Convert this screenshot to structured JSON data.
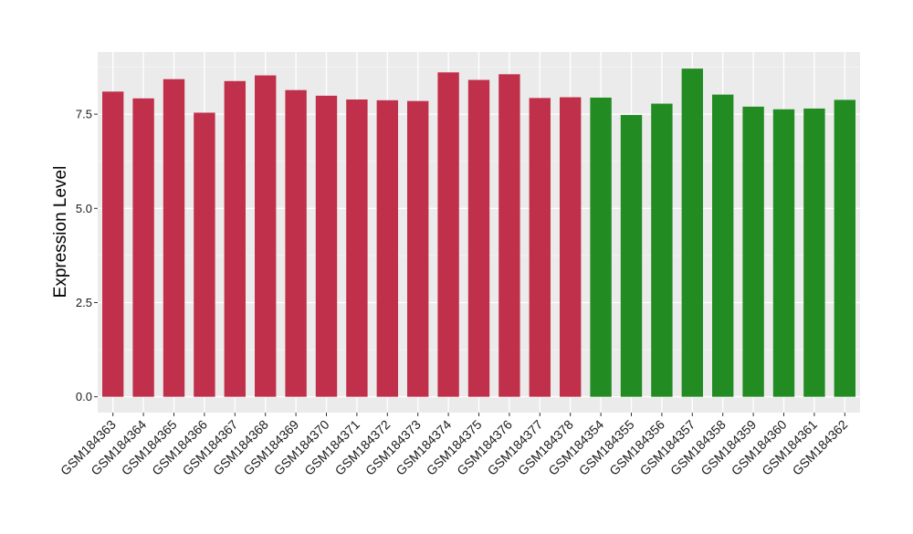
{
  "chart_data": {
    "type": "bar",
    "title": "",
    "xlabel": "",
    "ylabel": "Expression Level",
    "ylim": [
      -0.42,
      9.15
    ],
    "yticks": [
      0.0,
      2.5,
      5.0,
      7.5
    ],
    "ytick_labels": [
      "0.0",
      "2.5",
      "5.0",
      "7.5"
    ],
    "grid": true,
    "legend": "none",
    "colors": {
      "group1": "#c0304a",
      "group2": "#228b22",
      "panel_bg": "#ebebeb",
      "grid_major": "#ffffff",
      "grid_minor": "#f5f5f5"
    },
    "categories": [
      "GSM184363",
      "GSM184364",
      "GSM184365",
      "GSM184366",
      "GSM184367",
      "GSM184368",
      "GSM184369",
      "GSM184370",
      "GSM184371",
      "GSM184372",
      "GSM184373",
      "GSM184374",
      "GSM184375",
      "GSM184376",
      "GSM184377",
      "GSM184378",
      "GSM184354",
      "GSM184355",
      "GSM184356",
      "GSM184357",
      "GSM184358",
      "GSM184359",
      "GSM184360",
      "GSM184361",
      "GSM184362"
    ],
    "values": [
      8.1,
      7.92,
      8.43,
      7.54,
      8.38,
      8.53,
      8.14,
      7.99,
      7.89,
      7.87,
      7.85,
      8.61,
      8.41,
      8.56,
      7.93,
      7.95,
      7.94,
      7.48,
      7.78,
      8.71,
      8.02,
      7.7,
      7.63,
      7.65,
      7.88
    ],
    "groups": [
      1,
      1,
      1,
      1,
      1,
      1,
      1,
      1,
      1,
      1,
      1,
      1,
      1,
      1,
      1,
      1,
      2,
      2,
      2,
      2,
      2,
      2,
      2,
      2,
      2
    ]
  }
}
